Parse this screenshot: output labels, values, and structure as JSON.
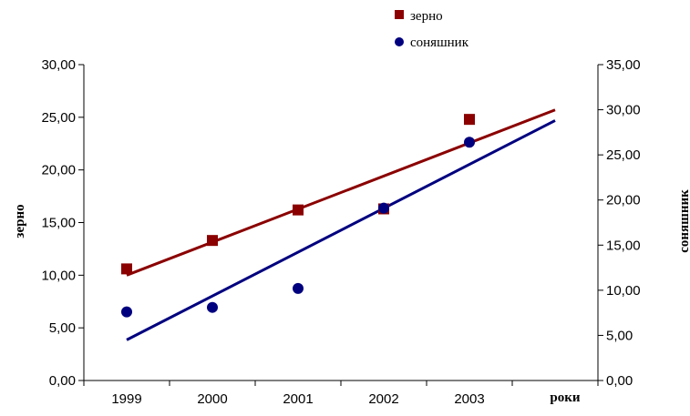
{
  "colors": {
    "series1": "#8B0000",
    "series2": "#00007F",
    "axis": "#000000"
  },
  "chart_data": {
    "type": "scatter",
    "categories": [
      "1999",
      "2000",
      "2001",
      "2002",
      "2003"
    ],
    "xlabel": "роки",
    "ylabel": "зерно",
    "ylabel_right": "соняшник",
    "ylim": [
      0,
      30
    ],
    "ylim_right": [
      0,
      35
    ],
    "yticks": [
      "0,00",
      "5,00",
      "10,00",
      "15,00",
      "20,00",
      "25,00",
      "30,00"
    ],
    "yticks_right": [
      "0,00",
      "5,00",
      "10,00",
      "15,00",
      "20,00",
      "25,00",
      "30,00",
      "35,00"
    ],
    "grid": false,
    "legend_position": "top-center",
    "series": [
      {
        "name": "зерно",
        "axis": "left",
        "marker": "square",
        "values": [
          10.6,
          13.3,
          16.2,
          16.3,
          24.8
        ],
        "trendline": {
          "start": [
            1,
            10.0
          ],
          "end": [
            6,
            25.7
          ]
        }
      },
      {
        "name": "соняшник",
        "axis": "right",
        "marker": "circle",
        "values": [
          7.6,
          8.1,
          10.2,
          19.1,
          26.4
        ],
        "trendline": {
          "start": [
            1,
            4.5
          ],
          "end": [
            6,
            28.8
          ]
        }
      }
    ]
  }
}
